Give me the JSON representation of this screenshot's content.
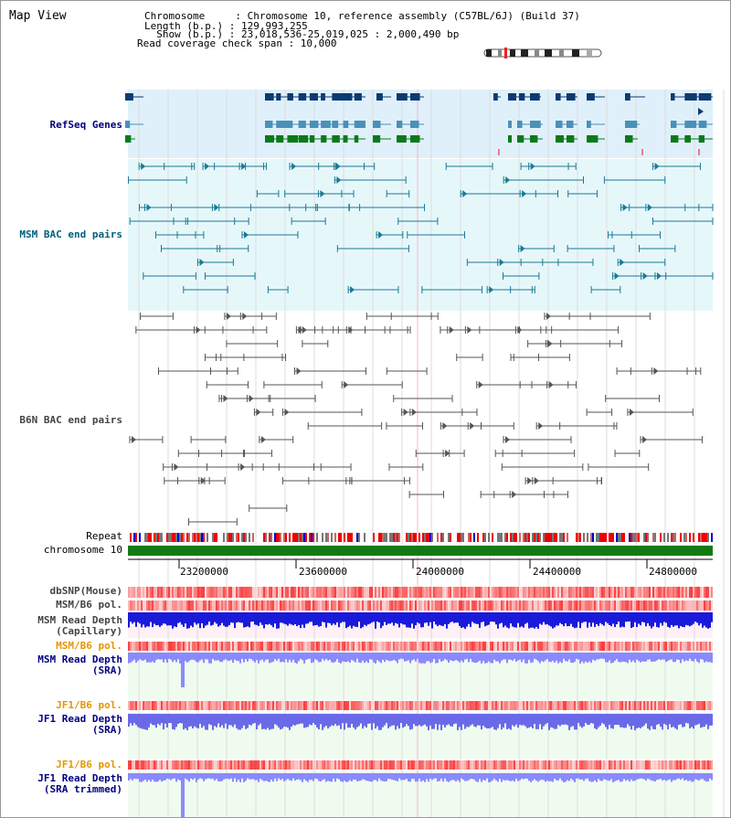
{
  "header": {
    "title": "Map View",
    "lines": [
      "Chromosome     : Chromosome 10, reference assembly (C57BL/6J) (Build 37)",
      "Length (b.p.) : 129,993,255",
      "  Show (b.p.) : 23,018,536-25,019,025 : 2,000,490 bp",
      "Read coverage check span : 10,000"
    ]
  },
  "tracks": {
    "refseq": "RefSeq Genes",
    "msm_bac": "MSM BAC end pairs",
    "b6n_bac": "B6N BAC end pairs",
    "repeat": "Repeat",
    "chromosome": "chromosome 10",
    "dbsnp": "dbSNP(Mouse)",
    "msm_pol_1": "MSM/B6 pol.",
    "msm_depth_cap_1": "MSM Read Depth",
    "msm_depth_cap_2": "(Capillary)",
    "msm_pol_2": "MSM/B6 pol.",
    "msm_depth_sra_1": "MSM Read Depth",
    "msm_depth_sra_2": "(SRA)",
    "jf1_pol_1": "JF1/B6 pol.",
    "jf1_depth_sra_1": "JF1 Read Depth",
    "jf1_depth_sra_2": "(SRA)",
    "jf1_pol_2": "JF1/B6 pol.",
    "jf1_depth_trim_1": "JF1 Read Depth",
    "jf1_depth_trim_2": "(SRA trimmed)"
  },
  "axis": {
    "ticks": [
      "23200000",
      "23600000",
      "24000000",
      "24400000",
      "24800000"
    ]
  },
  "colors": {
    "refseq_bg": "#dff0fa",
    "msm_bg": "#e6f7fa",
    "gene_dark": "#0d3a73",
    "gene_mid": "#4a90b8",
    "gene_green": "#0a7a1a",
    "chrom_green": "#137a13",
    "depth_blue": "#1a1adb",
    "depth_light": "#8a8aff"
  }
}
